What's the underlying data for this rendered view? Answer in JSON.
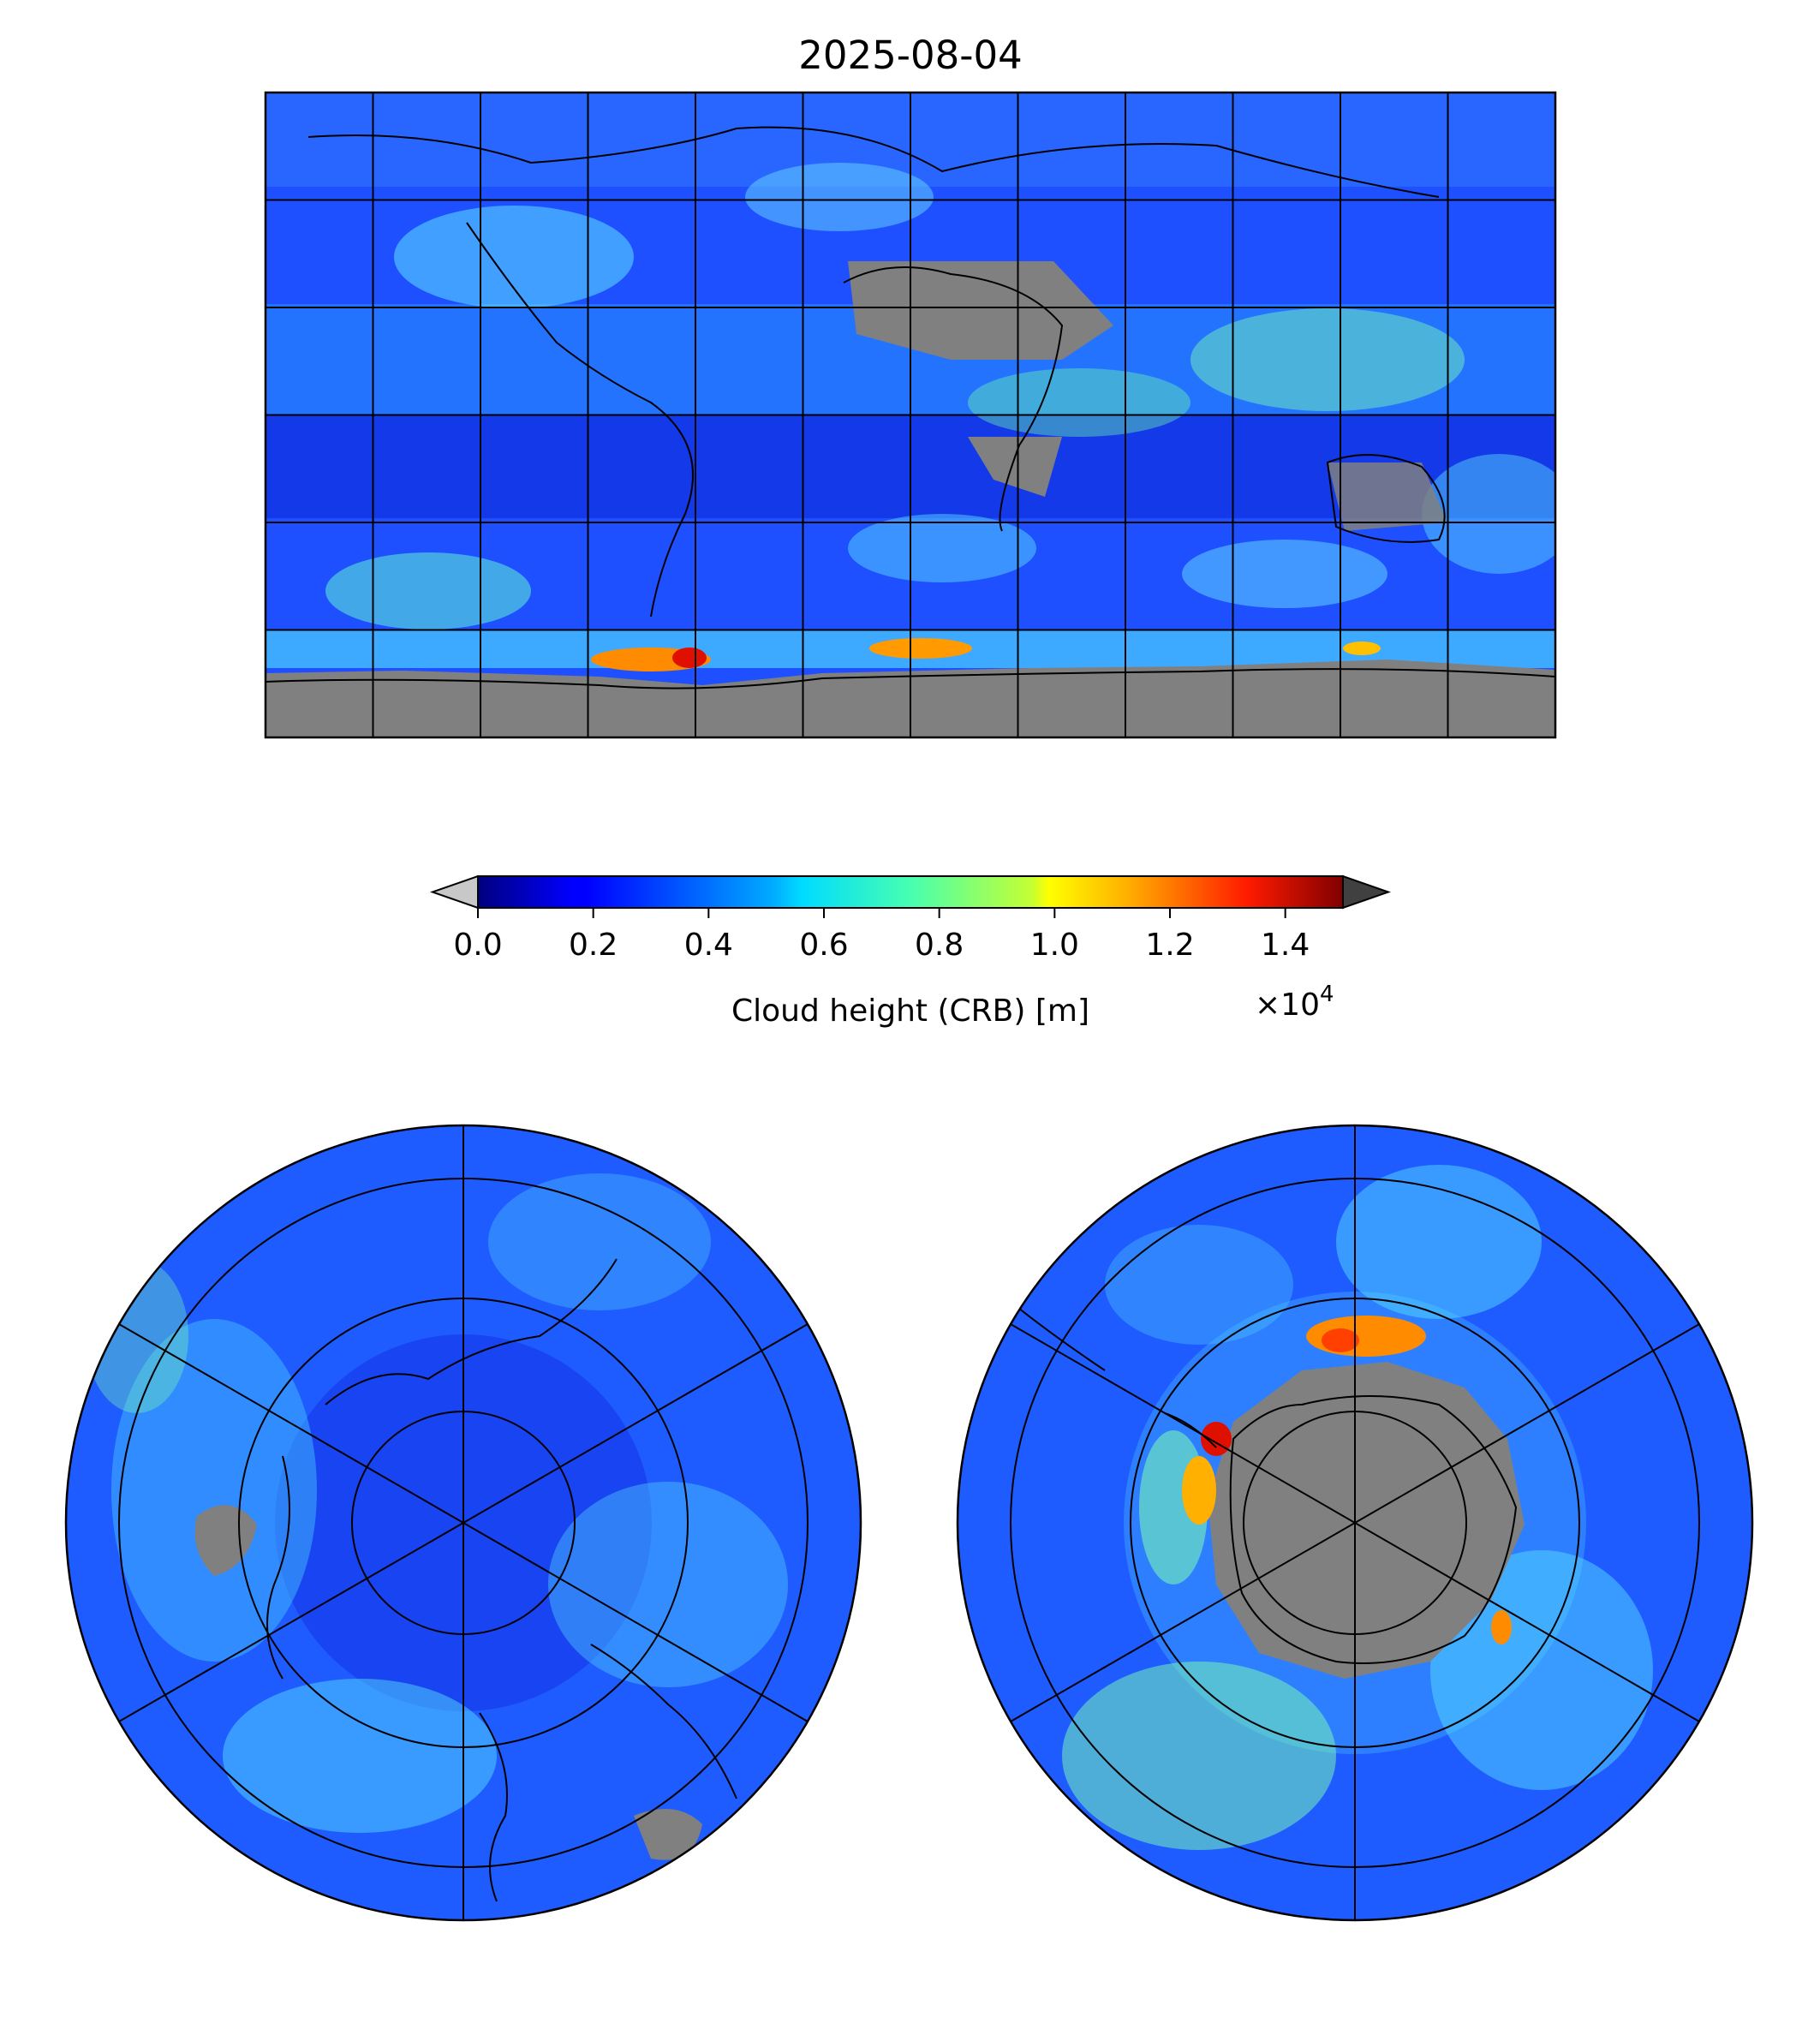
{
  "title": "2025-08-04",
  "colorbar": {
    "label": "Cloud height (CRB) [m]",
    "ticks": [
      "0.0",
      "0.2",
      "0.4",
      "0.6",
      "0.8",
      "1.0",
      "1.2",
      "1.4"
    ],
    "offset_text": "×10",
    "offset_exponent": "4",
    "vmin": 0.0,
    "vmax": 1.5,
    "scale_factor": 10000,
    "colormap": "jet",
    "extend": "both",
    "under_color": "#c8c8c8",
    "over_color": "#404040",
    "missing_color": "#808080"
  },
  "maps": [
    {
      "name": "global",
      "projection": "equirectangular",
      "gridlines": {
        "lon_step_deg": 30,
        "lat_step_deg": 30
      }
    },
    {
      "name": "north-pole",
      "projection": "north-polar-stereographic"
    },
    {
      "name": "south-pole",
      "projection": "south-polar-stereographic"
    }
  ]
}
